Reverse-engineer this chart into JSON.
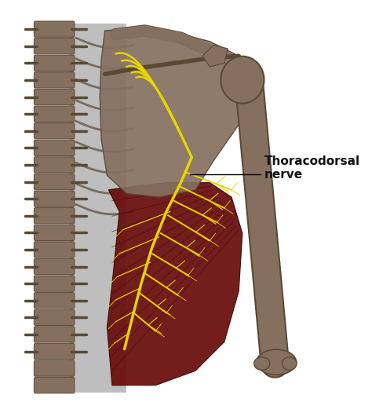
{
  "background_color": "#ffffff",
  "bone_color": "#857060",
  "bone_edge": "#5a4a35",
  "muscle_color": "#6b1010",
  "muscle_dark": "#3a0808",
  "nerve_color": "#e8d400",
  "torso_color": "#9a9a9a",
  "label_text": "Thoracodorsal\nnerve",
  "label_fontsize": 11,
  "label_fontweight": "bold",
  "label_color": "#111111"
}
